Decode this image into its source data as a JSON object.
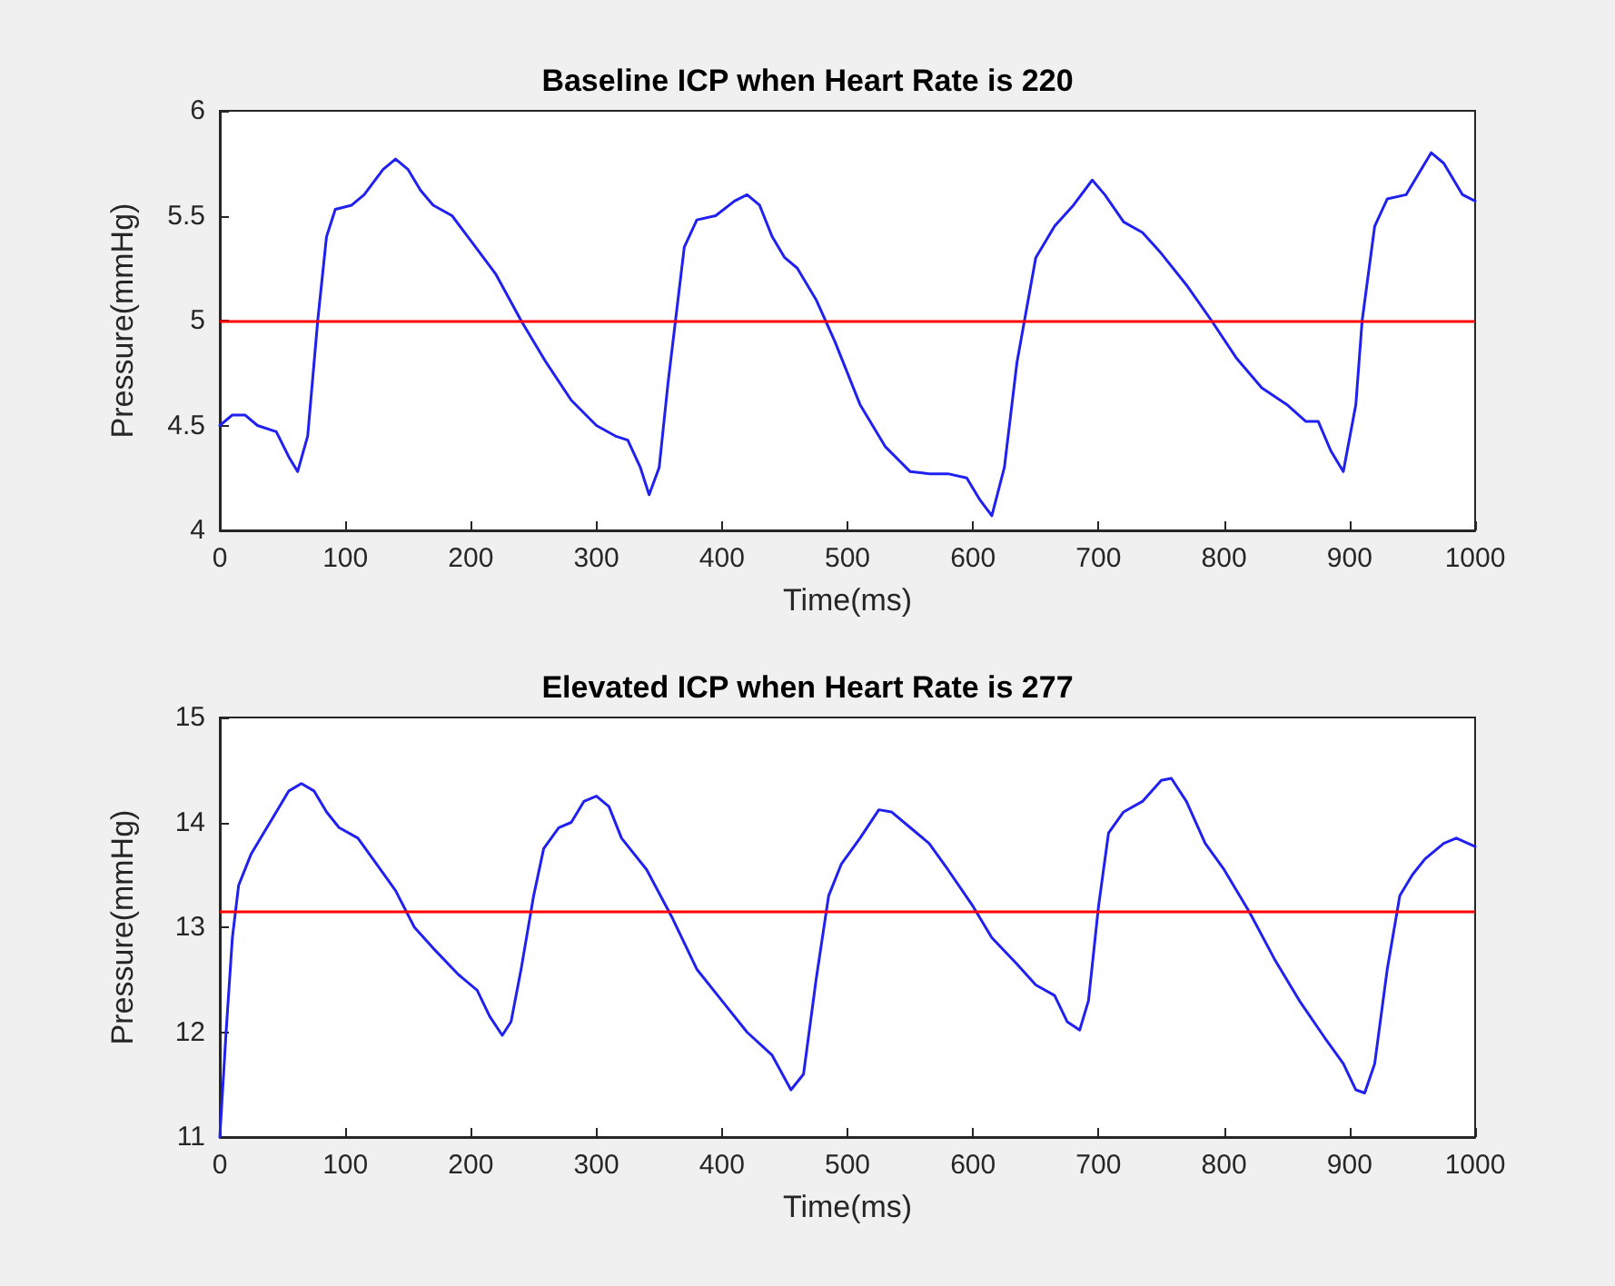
{
  "chart_data": [
    {
      "type": "line",
      "title": "Baseline ICP when Heart Rate is 220",
      "xlabel": "Time(ms)",
      "ylabel": "Pressure(mmHg)",
      "xlim": [
        0,
        1000
      ],
      "xticks": [
        0,
        100,
        200,
        300,
        400,
        500,
        600,
        700,
        800,
        900,
        1000
      ],
      "ylim": [
        4,
        6
      ],
      "yticks": [
        4,
        4.5,
        5,
        5.5,
        6
      ],
      "grid": false,
      "marker": "none",
      "line_style": "solid",
      "ref_lines": [
        {
          "axis": "y",
          "value": 5,
          "color": "#ff0000"
        }
      ],
      "series": [
        {
          "color": "#2020f0",
          "x": [
            0,
            10,
            20,
            30,
            45,
            55,
            62,
            70,
            78,
            85,
            92,
            105,
            115,
            130,
            140,
            150,
            160,
            170,
            185,
            200,
            220,
            240,
            260,
            280,
            300,
            315,
            325,
            335,
            342,
            350,
            357,
            363,
            370,
            380,
            395,
            410,
            420,
            430,
            440,
            450,
            460,
            475,
            490,
            510,
            530,
            550,
            565,
            580,
            595,
            605,
            615,
            625,
            635,
            641,
            650,
            665,
            680,
            695,
            705,
            720,
            735,
            750,
            770,
            790,
            810,
            830,
            850,
            865,
            875,
            885,
            895,
            905,
            910,
            920,
            930,
            945,
            955,
            965,
            975,
            990,
            1000
          ],
          "values": [
            4.5,
            4.55,
            4.55,
            4.5,
            4.47,
            4.35,
            4.28,
            4.45,
            5.0,
            5.4,
            5.53,
            5.55,
            5.6,
            5.72,
            5.77,
            5.72,
            5.62,
            5.55,
            5.5,
            5.38,
            5.22,
            5.0,
            4.8,
            4.62,
            4.5,
            4.45,
            4.43,
            4.3,
            4.17,
            4.3,
            4.7,
            5.0,
            5.35,
            5.48,
            5.5,
            5.57,
            5.6,
            5.55,
            5.4,
            5.3,
            5.25,
            5.1,
            4.9,
            4.6,
            4.4,
            4.28,
            4.27,
            4.27,
            4.25,
            4.15,
            4.07,
            4.3,
            4.8,
            5.0,
            5.3,
            5.45,
            5.55,
            5.67,
            5.6,
            5.47,
            5.42,
            5.32,
            5.17,
            5.0,
            4.82,
            4.68,
            4.6,
            4.52,
            4.52,
            4.38,
            4.28,
            4.6,
            5.0,
            5.45,
            5.58,
            5.6,
            5.7,
            5.8,
            5.75,
            5.6,
            5.57
          ]
        }
      ]
    },
    {
      "type": "line",
      "title": "Elevated ICP when Heart Rate is 277",
      "xlabel": "Time(ms)",
      "ylabel": "Pressure(mmHg)",
      "xlim": [
        0,
        1000
      ],
      "xticks": [
        0,
        100,
        200,
        300,
        400,
        500,
        600,
        700,
        800,
        900,
        1000
      ],
      "ylim": [
        11,
        15
      ],
      "yticks": [
        11,
        12,
        13,
        14,
        15
      ],
      "grid": false,
      "marker": "none",
      "line_style": "solid",
      "ref_lines": [
        {
          "axis": "y",
          "value": 13.15,
          "color": "#ff0000"
        }
      ],
      "series": [
        {
          "color": "#2020f0",
          "x": [
            0,
            5,
            10,
            15,
            25,
            35,
            45,
            55,
            65,
            75,
            85,
            95,
            110,
            125,
            140,
            155,
            170,
            190,
            205,
            215,
            225,
            232,
            240,
            250,
            258,
            270,
            280,
            290,
            300,
            310,
            320,
            340,
            360,
            380,
            400,
            420,
            440,
            455,
            465,
            475,
            485,
            495,
            510,
            525,
            535,
            550,
            565,
            580,
            600,
            615,
            635,
            650,
            665,
            675,
            685,
            692,
            700,
            708,
            720,
            735,
            750,
            758,
            770,
            785,
            800,
            820,
            840,
            860,
            880,
            895,
            905,
            912,
            920,
            930,
            940,
            950,
            960,
            975,
            985,
            1000
          ],
          "values": [
            11.0,
            12.0,
            12.9,
            13.4,
            13.7,
            13.9,
            14.1,
            14.3,
            14.37,
            14.3,
            14.1,
            13.95,
            13.85,
            13.6,
            13.35,
            13.0,
            12.8,
            12.55,
            12.4,
            12.15,
            11.97,
            12.1,
            12.6,
            13.3,
            13.75,
            13.95,
            14.0,
            14.2,
            14.25,
            14.15,
            13.85,
            13.55,
            13.1,
            12.6,
            12.3,
            12.0,
            11.78,
            11.45,
            11.6,
            12.5,
            13.3,
            13.6,
            13.85,
            14.12,
            14.1,
            13.95,
            13.8,
            13.55,
            13.2,
            12.9,
            12.65,
            12.45,
            12.35,
            12.1,
            12.02,
            12.3,
            13.2,
            13.9,
            14.1,
            14.2,
            14.4,
            14.42,
            14.2,
            13.8,
            13.55,
            13.15,
            12.7,
            12.3,
            11.95,
            11.7,
            11.45,
            11.42,
            11.7,
            12.6,
            13.3,
            13.5,
            13.65,
            13.8,
            13.85,
            13.77
          ]
        }
      ]
    }
  ]
}
